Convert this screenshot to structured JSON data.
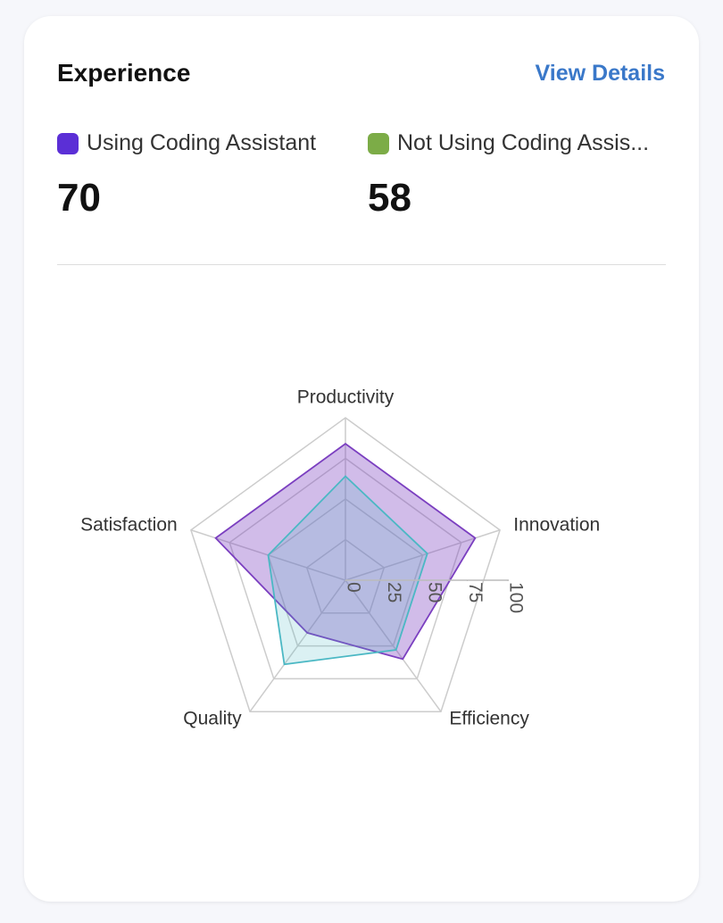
{
  "header": {
    "title": "Experience",
    "link": "View Details"
  },
  "chart_data": {
    "type": "radar",
    "categories": [
      "Productivity",
      "Innovation",
      "Efficiency",
      "Quality",
      "Satisfaction"
    ],
    "series": [
      {
        "name": "Using Coding Assistant",
        "legend_color": "#5b2fd6",
        "color": "#7b3fc0",
        "score": 70,
        "values": [
          84,
          84,
          60,
          40,
          84
        ]
      },
      {
        "name": "Not Using Coding Assis...",
        "legend_color": "#7cac47",
        "color": "#4bb8c4",
        "score": 58,
        "values": [
          64,
          53,
          53,
          64,
          50
        ]
      }
    ],
    "rlim": [
      0,
      100
    ],
    "rticks": [
      0,
      25,
      50,
      75,
      100
    ],
    "grid": true
  }
}
